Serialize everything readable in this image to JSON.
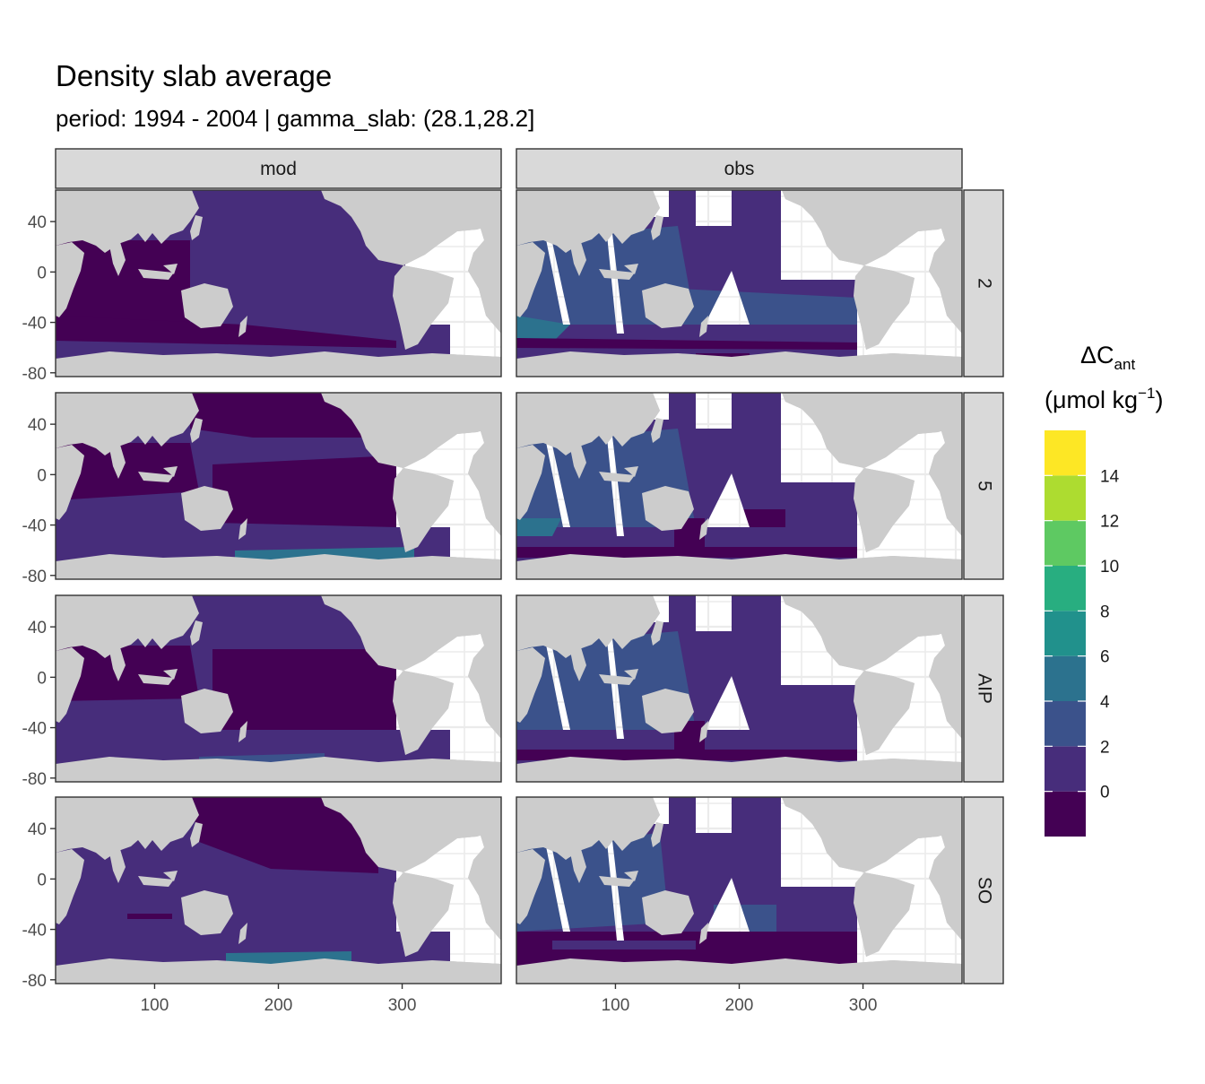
{
  "title": "Density slab average",
  "subtitle": "period: 1994 - 2004 | gamma_slab: (28.1,28.2]",
  "colors": {
    "land": "#cccccc",
    "strip_bg": "#d9d9d9",
    "grid": "#ebebeb",
    "panel_border": "#333333",
    "palette": [
      "#440154",
      "#472d7b",
      "#3b528b",
      "#2c728e",
      "#21918c",
      "#28ae80",
      "#5ec962",
      "#addc30",
      "#fde725"
    ]
  },
  "chart_data": {
    "type": "heatmap",
    "description_of_mapping": "facet grid of maps; columns = data source, rows = basin mask",
    "columns": [
      "mod",
      "obs"
    ],
    "rows": [
      "2",
      "5",
      "AIP",
      "SO"
    ],
    "x_ticks": [
      "100",
      "200",
      "300"
    ],
    "x_tick_values": [
      100,
      200,
      300
    ],
    "xlim": [
      20,
      380
    ],
    "y_ticks": [
      "40",
      "0",
      "-40",
      "-80"
    ],
    "y_tick_values": [
      40,
      0,
      -40,
      -80
    ],
    "ylim": [
      -83,
      65
    ],
    "legend": {
      "title_main": "ΔC",
      "title_sub": "ant",
      "units_prefix": "(μmol kg",
      "units_sup": "−1",
      "units_suffix": ")",
      "labels": [
        "14",
        "12",
        "10",
        "8",
        "6",
        "4",
        "2",
        "0"
      ],
      "label_values": [
        14,
        12,
        10,
        8,
        6,
        4,
        2,
        0
      ],
      "breaks": [
        -2,
        0,
        2,
        4,
        6,
        8,
        10,
        12,
        14,
        16
      ],
      "placement": "right"
    },
    "grid": true
  }
}
